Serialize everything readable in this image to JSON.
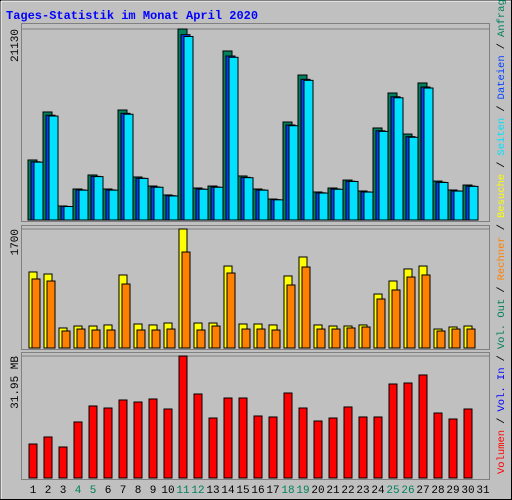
{
  "title": "Tages-Statistik im Monat April 2020",
  "categories": [
    "1",
    "2",
    "3",
    "4",
    "5",
    "6",
    "7",
    "8",
    "9",
    "10",
    "11",
    "12",
    "13",
    "14",
    "15",
    "16",
    "17",
    "18",
    "19",
    "20",
    "21",
    "22",
    "23",
    "24",
    "25",
    "26",
    "27",
    "28",
    "29",
    "30",
    "31"
  ],
  "category_colors": [
    "#000000",
    "#000000",
    "#000000",
    "#00805c",
    "#00805c",
    "#000000",
    "#000000",
    "#000000",
    "#000000",
    "#000000",
    "#00805c",
    "#00805c",
    "#000000",
    "#000000",
    "#000000",
    "#000000",
    "#000000",
    "#00805c",
    "#00805c",
    "#000000",
    "#000000",
    "#000000",
    "#000000",
    "#000000",
    "#00805c",
    "#00805c",
    "#000000",
    "#000000",
    "#000000",
    "#000000",
    "#000000"
  ],
  "separator": "/",
  "extra_legend": [
    {
      "text": "Vol. In",
      "color": "#0000ff"
    },
    {
      "text": "Vol. Out",
      "color": "#00805c"
    }
  ],
  "chart_data": [
    {
      "type": "bar",
      "ylim": [
        0,
        21130
      ],
      "yticks": [
        21130
      ],
      "series": [
        {
          "name": "Anfragen",
          "color": "#00805c",
          "values": [
            6640,
            11950,
            1550,
            3430,
            4980,
            3430,
            12170,
            4760,
            3760,
            2770,
            21130,
            3540,
            3760,
            18700,
            4870,
            3430,
            2320,
            10840,
            16040,
            3100,
            3540,
            4420,
            3210,
            10180,
            14050,
            9510,
            15160,
            4310,
            3320,
            3870,
            null
          ]
        },
        {
          "name": "Dateien",
          "color": "#0040ff",
          "values": [
            6440,
            11590,
            1500,
            3330,
            4830,
            3330,
            11800,
            4620,
            3650,
            2690,
            20500,
            3430,
            3650,
            18140,
            4720,
            3330,
            2250,
            10510,
            15560,
            3010,
            3430,
            4290,
            3110,
            9870,
            13630,
            9220,
            14710,
            4180,
            3220,
            3750,
            null
          ]
        },
        {
          "name": "Seiten",
          "color": "#00e0ff",
          "values": [
            6400,
            11500,
            1490,
            3300,
            4800,
            3300,
            11700,
            4600,
            3620,
            2660,
            20300,
            3400,
            3620,
            18000,
            4680,
            3300,
            2230,
            10430,
            15450,
            2980,
            3400,
            4260,
            3090,
            9800,
            13520,
            9150,
            14600,
            4150,
            3200,
            3720,
            null
          ]
        }
      ]
    },
    {
      "type": "bar",
      "ylim": [
        0,
        1700
      ],
      "yticks": [
        1700
      ],
      "series": [
        {
          "name": "Besuche",
          "color": "#ffff00",
          "values": [
            1086,
            1057,
            286,
            314,
            314,
            329,
            1043,
            343,
            329,
            357,
            1700,
            357,
            357,
            1171,
            343,
            343,
            329,
            1029,
            1300,
            329,
            314,
            314,
            329,
            771,
            957,
            1129,
            1171,
            271,
            300,
            314,
            null
          ]
        },
        {
          "name": "Rechner",
          "color": "#ff8000",
          "values": [
            986,
            957,
            243,
            271,
            257,
            257,
            914,
            257,
            257,
            271,
            1371,
            257,
            314,
            1071,
            271,
            271,
            257,
            900,
            1157,
            271,
            271,
            286,
            300,
            700,
            829,
            1014,
            1043,
            243,
            271,
            271,
            null
          ]
        }
      ]
    },
    {
      "type": "bar",
      "ylim": [
        0,
        31.95
      ],
      "yticks": [
        {
          "value": 31.95,
          "label": "31.95 MB"
        }
      ],
      "series": [
        {
          "name": "Volumen",
          "color": "#ff0000",
          "values": [
            8.9,
            10.74,
            8.12,
            14.67,
            18.86,
            18.33,
            20.43,
            19.9,
            20.69,
            18.07,
            31.95,
            22.0,
            15.71,
            20.95,
            20.95,
            16.24,
            15.98,
            22.26,
            18.33,
            14.93,
            15.71,
            18.6,
            15.98,
            15.98,
            24.62,
            24.88,
            26.98,
            17.02,
            15.45,
            18.07,
            null
          ]
        }
      ]
    }
  ]
}
